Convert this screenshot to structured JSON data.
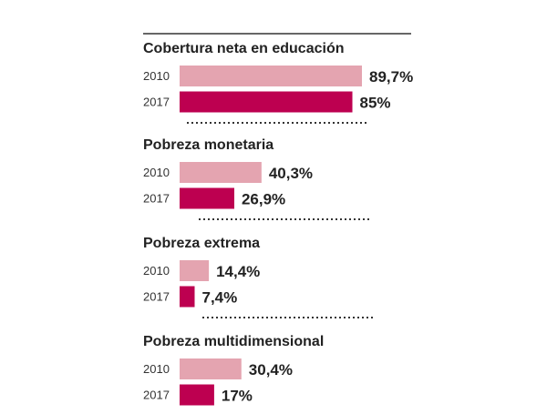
{
  "chart_data": {
    "type": "bar",
    "orientation": "horizontal",
    "unit": "%",
    "xlim": [
      0,
      100
    ],
    "grid": false,
    "colors": {
      "2010": "#e4a4b0",
      "2017": "#bd0050"
    },
    "panels": [
      {
        "title": "Cobertura neta en educación",
        "rows": [
          {
            "year": "2010",
            "value": 89.7,
            "label": "89,7%"
          },
          {
            "year": "2017",
            "value": 85,
            "label": "85%"
          }
        ]
      },
      {
        "title": "Pobreza monetaria",
        "rows": [
          {
            "year": "2010",
            "value": 40.3,
            "label": "40,3%"
          },
          {
            "year": "2017",
            "value": 26.9,
            "label": "26,9%"
          }
        ]
      },
      {
        "title": "Pobreza extrema",
        "rows": [
          {
            "year": "2010",
            "value": 14.4,
            "label": "14,4%"
          },
          {
            "year": "2017",
            "value": 7.4,
            "label": "7,4%"
          }
        ]
      },
      {
        "title": "Pobreza multidimensional",
        "rows": [
          {
            "year": "2010",
            "value": 30.4,
            "label": "30,4%"
          },
          {
            "year": "2017",
            "value": 17,
            "label": "17%"
          }
        ]
      }
    ]
  }
}
